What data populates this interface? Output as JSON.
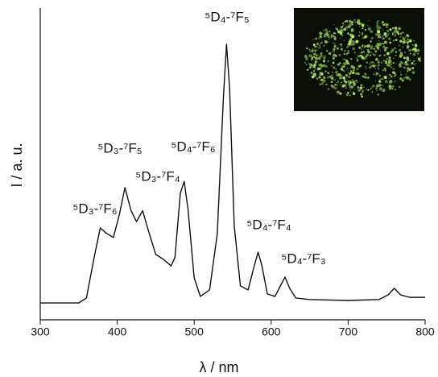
{
  "chart_data": {
    "type": "line",
    "x_label": "λ / nm",
    "y_label": "I / a. u.",
    "x": [
      300,
      350,
      360,
      370,
      378,
      385,
      395,
      403,
      410,
      418,
      425,
      433,
      440,
      450,
      460,
      470,
      475,
      482,
      487,
      492,
      500,
      508,
      520,
      530,
      538,
      542,
      546,
      552,
      560,
      570,
      578,
      583,
      588,
      595,
      605,
      612,
      618,
      624,
      632,
      650,
      700,
      740,
      752,
      760,
      768,
      780,
      800
    ],
    "series": [
      {
        "color": "#111111",
        "values": [
          5.4,
          5.4,
          7,
          20,
          29.5,
          27.9,
          26.4,
          34,
          42.4,
          35,
          31.5,
          35,
          29,
          21,
          19.4,
          17.3,
          20,
          40.6,
          44.4,
          35.4,
          13.4,
          7.5,
          9.6,
          27.6,
          71.6,
          88.4,
          74.2,
          30.2,
          10.9,
          9.6,
          17.3,
          21.7,
          17.3,
          8.3,
          7.5,
          10.9,
          13.7,
          10.1,
          7,
          6.5,
          6.2,
          6.5,
          8,
          10.1,
          8,
          7.2,
          7.2
        ]
      }
    ],
    "xlim": [
      300,
      800
    ],
    "xticks": [
      300,
      400,
      500,
      600,
      700,
      800
    ],
    "ylim": [
      0,
      100
    ],
    "annotations": [
      "⁵D₄-⁷F₅",
      "⁵D₃-⁷F₅",
      "⁵D₄-⁷F₆",
      "⁵D₃-⁷F₄",
      "⁵D₃-⁷F₆",
      "⁵D₄-⁷F₄",
      "⁵D₄-⁷F₃"
    ]
  }
}
